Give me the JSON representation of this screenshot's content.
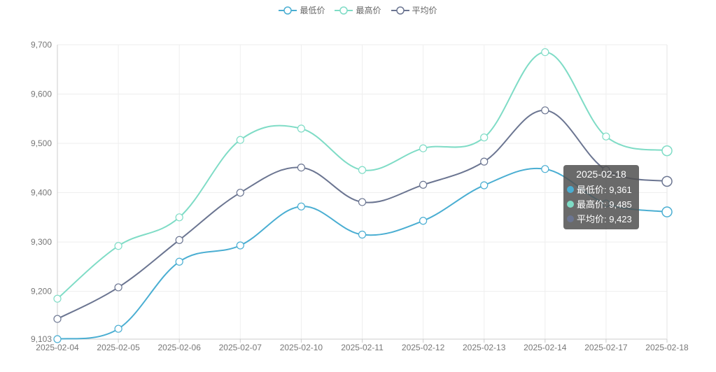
{
  "legend": [
    {
      "label": "最低价",
      "color": "#4aaed2"
    },
    {
      "label": "最高价",
      "color": "#7fdcc6"
    },
    {
      "label": "平均价",
      "color": "#6b7591"
    }
  ],
  "chart_data": {
    "type": "line",
    "categories": [
      "2025-02-04",
      "2025-02-05",
      "2025-02-06",
      "2025-02-07",
      "2025-02-10",
      "2025-02-11",
      "2025-02-12",
      "2025-02-13",
      "2025-02-14",
      "2025-02-17",
      "2025-02-18"
    ],
    "series": [
      {
        "name": "最低价",
        "color": "#4aaed2",
        "values": [
          9103,
          9124,
          9260,
          9293,
          9372,
          9315,
          9343,
          9415,
          9448,
          9378,
          9361
        ]
      },
      {
        "name": "最高价",
        "color": "#7fdcc6",
        "values": [
          9185,
          9292,
          9350,
          9507,
          9530,
          9446,
          9490,
          9512,
          9685,
          9514,
          9485
        ]
      },
      {
        "name": "平均价",
        "color": "#6b7591",
        "values": [
          9144,
          9208,
          9304,
          9400,
          9451,
          9381,
          9416,
          9463,
          9567,
          9446,
          9423
        ]
      }
    ],
    "yticks": [
      9103,
      9200,
      9300,
      9400,
      9500,
      9600,
      9700
    ],
    "ylim": [
      9103,
      9700
    ],
    "grid": true,
    "legend_position": "top-center"
  },
  "tooltip": {
    "title": "2025-02-18",
    "rows": [
      {
        "label": "最低价: 9,361",
        "color": "#4aaed2"
      },
      {
        "label": "最高价: 9,485",
        "color": "#7fdcc6"
      },
      {
        "label": "平均价: 9,423",
        "color": "#6b7591"
      }
    ]
  }
}
